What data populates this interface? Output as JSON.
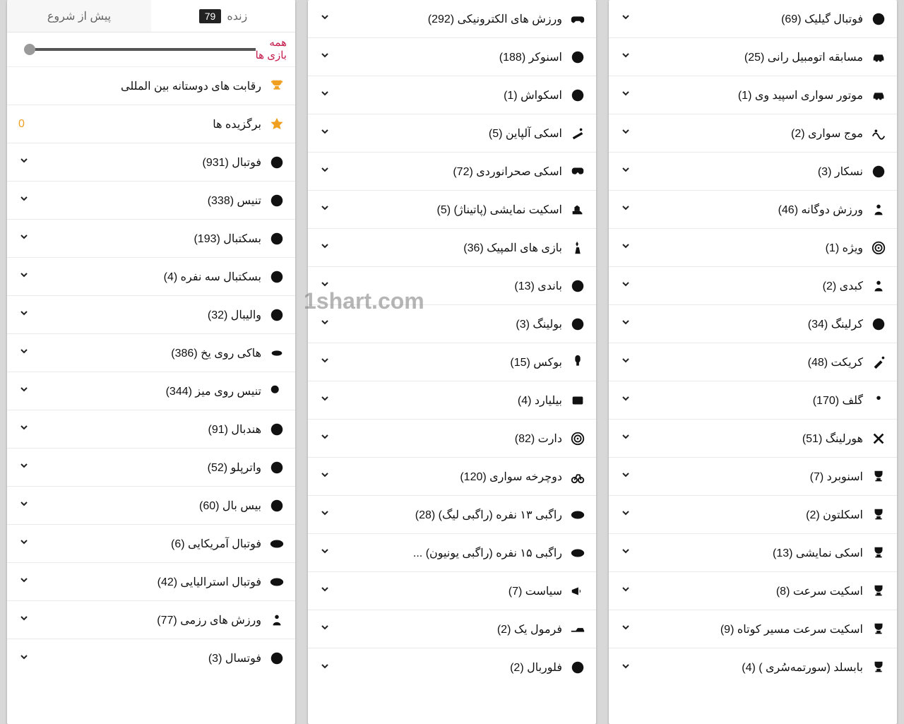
{
  "watermark": "1shart.com",
  "tabs": {
    "prestart": "پیش از شروع",
    "live": "زنده",
    "live_count": "79"
  },
  "filter": {
    "label_line1": "همه",
    "label_line2": "بازی ها"
  },
  "col_right": [
    {
      "icon": "trophy",
      "gold": true,
      "label": "رقابت های دوستانه بین المللی",
      "chev": false
    },
    {
      "icon": "star",
      "gold": true,
      "label": "برگزیده ها",
      "chev": false,
      "leftval": "0"
    },
    {
      "icon": "soccer",
      "label": "فوتبال (931)"
    },
    {
      "icon": "tennis",
      "label": "تنیس (338)"
    },
    {
      "icon": "basketball",
      "label": "بسکتبال (193)"
    },
    {
      "icon": "basket3",
      "label": "بسکتبال سه نفره (4)"
    },
    {
      "icon": "volleyball",
      "label": "والیبال (32)"
    },
    {
      "icon": "puck",
      "label": "هاکی روی یخ (386)"
    },
    {
      "icon": "pingpong",
      "label": "تنیس روی میز (344)"
    },
    {
      "icon": "handball",
      "label": "هندبال (91)"
    },
    {
      "icon": "waterpolo",
      "label": "واترپلو (52)"
    },
    {
      "icon": "baseball",
      "label": "بیس بال (60)"
    },
    {
      "icon": "amfootball",
      "label": "فوتبال آمریکایی (6)"
    },
    {
      "icon": "ausfootball",
      "label": "فوتبال استرالیایی (42)"
    },
    {
      "icon": "mma",
      "label": "ورزش های رزمی (77)"
    },
    {
      "icon": "futsal",
      "label": "فوتسال (3)"
    }
  ],
  "col_mid": [
    {
      "icon": "esports",
      "label": "ورزش های الکترونیکی (292)"
    },
    {
      "icon": "snooker",
      "label": "اسنوکر (188)"
    },
    {
      "icon": "squash",
      "label": "اسکواش (1)"
    },
    {
      "icon": "alpine",
      "label": "اسکی آلپاین (5)"
    },
    {
      "icon": "xcski",
      "label": "اسکی صحرانوردی (72)"
    },
    {
      "icon": "figskate",
      "label": "اسکیت نمایشی (پاتیناژ) (5)"
    },
    {
      "icon": "olympic",
      "label": "بازی های المپیک (36)"
    },
    {
      "icon": "bandy",
      "label": "باندی (13)"
    },
    {
      "icon": "bowling",
      "label": "بولینگ (3)"
    },
    {
      "icon": "boxing",
      "label": "بوکس (15)"
    },
    {
      "icon": "billiards",
      "label": "بیلیارد (4)"
    },
    {
      "icon": "darts",
      "label": "دارت (82)"
    },
    {
      "icon": "cycling",
      "label": "دوچرخه سواری (120)"
    },
    {
      "icon": "rugby",
      "label": "راگبی ۱۳ نفره (راگبی لیگ) (28)"
    },
    {
      "icon": "rugby",
      "label": "راگبی ۱۵ نفره (راگبی یونیون) ..."
    },
    {
      "icon": "politics",
      "label": "سیاست (7)"
    },
    {
      "icon": "f1",
      "label": "فرمول یک (2)"
    },
    {
      "icon": "floorball",
      "label": "فلوربال (2)"
    }
  ],
  "col_left": [
    {
      "icon": "gaelic",
      "label": "فوتبال گیلیک (69)"
    },
    {
      "icon": "racing",
      "label": "مسابقه اتومبیل رانی (25)"
    },
    {
      "icon": "speedway",
      "label": "موتور سواری اسپید وی (1)"
    },
    {
      "icon": "surfing",
      "label": "موج سواری (2)"
    },
    {
      "icon": "nascar",
      "label": "نسکار (3)"
    },
    {
      "icon": "biathlon",
      "label": "ورزش دوگانه (46)"
    },
    {
      "icon": "special",
      "label": "ویژه (1)"
    },
    {
      "icon": "kabaddi",
      "label": "کبدی (2)"
    },
    {
      "icon": "curling",
      "label": "کرلینگ (34)"
    },
    {
      "icon": "cricket",
      "label": "کریکت (48)"
    },
    {
      "icon": "golf",
      "label": "گلف (170)"
    },
    {
      "icon": "hurling",
      "label": "هورلینگ (51)"
    },
    {
      "icon": "cup",
      "label": "اسنوبرد (7)"
    },
    {
      "icon": "cup",
      "label": "اسکلتون (2)"
    },
    {
      "icon": "cup",
      "label": "اسکی نمایشی (13)"
    },
    {
      "icon": "cup",
      "label": "اسکیت سرعت (8)"
    },
    {
      "icon": "cup",
      "label": "اسکیت سرعت مسیر کوتاه (9)"
    },
    {
      "icon": "cup",
      "label": "بابسلد (سورتمه‌سُری ) (4)"
    }
  ]
}
